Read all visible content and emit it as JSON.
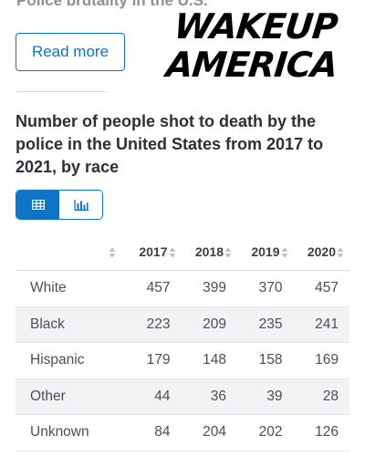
{
  "header": {
    "top_link": "Police brutality in the U.S.",
    "overlay_line1": "WAKEUP",
    "overlay_line2": "AMERICA",
    "read_more_label": "Read more"
  },
  "chart": {
    "title": "Number of people shot to death by the police in the United States from 2017 to 2021, by race"
  },
  "view_toggle": {
    "options": [
      {
        "icon": "table-icon",
        "active": true
      },
      {
        "icon": "bar-chart-icon",
        "active": false
      }
    ]
  },
  "colors": {
    "accent": "#0f74c4",
    "row_alt": "#f2f3f5"
  },
  "table": {
    "columns": [
      "2017",
      "2018",
      "2019",
      "2020"
    ],
    "rows": [
      {
        "label": "White",
        "values": [
          "457",
          "399",
          "370",
          "457"
        ]
      },
      {
        "label": "Black",
        "values": [
          "223",
          "209",
          "235",
          "241"
        ]
      },
      {
        "label": "Hispanic",
        "values": [
          "179",
          "148",
          "158",
          "169"
        ]
      },
      {
        "label": "Other",
        "values": [
          "44",
          "36",
          "39",
          "28"
        ]
      },
      {
        "label": "Unknown",
        "values": [
          "84",
          "204",
          "202",
          "126"
        ]
      }
    ]
  }
}
